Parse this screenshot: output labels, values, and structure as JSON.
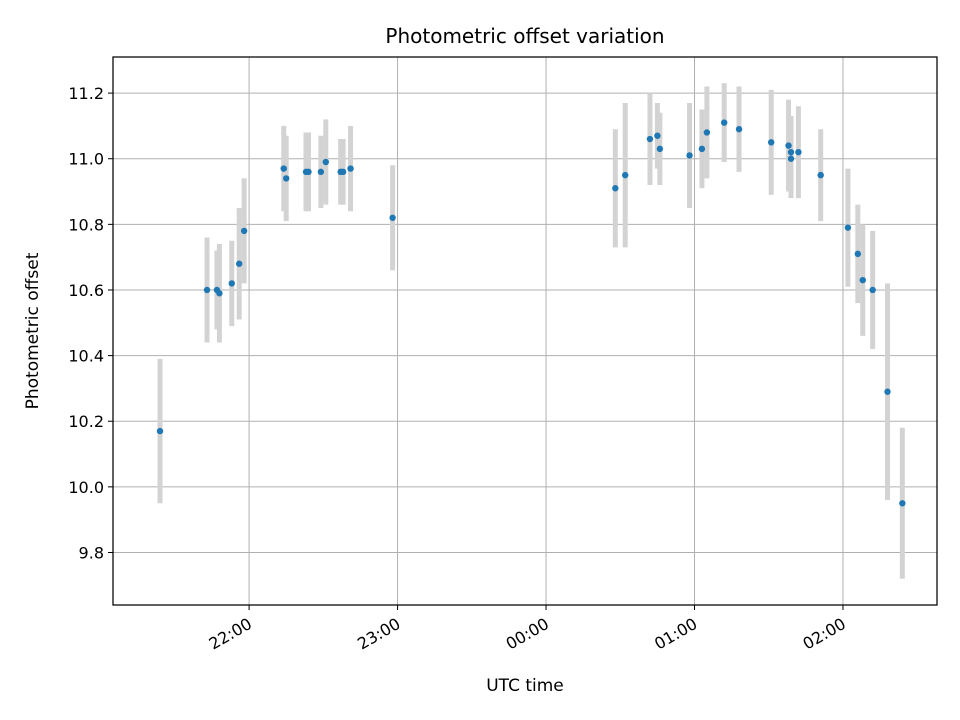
{
  "chart_data": {
    "type": "scatter",
    "title": "Photometric offset variation",
    "xlabel": "UTC time",
    "ylabel": "Photometric offset",
    "grid": true,
    "colors": {
      "points": "#1f77b4",
      "errorbars": "#d3d3d3",
      "grid": "#b0b0b0"
    },
    "xlim": [
      "21:05",
      "02:38"
    ],
    "ylim": [
      9.64,
      11.31
    ],
    "x_ticks": [
      "22:00",
      "23:00",
      "00:00",
      "01:00",
      "02:00"
    ],
    "y_ticks": [
      "9.8",
      "10.0",
      "10.2",
      "10.4",
      "10.6",
      "10.8",
      "11.0",
      "11.2"
    ],
    "series": [
      {
        "x": [
          "21:24",
          "21:43",
          "21:47",
          "21:48",
          "21:53",
          "21:56",
          "21:58",
          "22:14",
          "22:15",
          "22:23",
          "22:24",
          "22:29",
          "22:31",
          "22:37",
          "22:38",
          "22:41",
          "22:58",
          "00:28",
          "00:32",
          "00:42",
          "00:45",
          "00:46",
          "00:58",
          "01:03",
          "01:05",
          "01:12",
          "01:18",
          "01:31",
          "01:38",
          "01:39",
          "01:39",
          "01:42",
          "01:51",
          "02:02",
          "02:06",
          "02:08",
          "02:12",
          "02:18",
          "02:24"
        ],
        "y": [
          10.17,
          10.6,
          10.6,
          10.59,
          10.62,
          10.68,
          10.78,
          10.97,
          10.94,
          10.96,
          10.96,
          10.96,
          10.99,
          10.96,
          10.96,
          10.97,
          10.82,
          10.91,
          10.95,
          11.06,
          11.07,
          11.03,
          11.01,
          11.03,
          11.08,
          11.11,
          11.09,
          11.05,
          11.04,
          11.02,
          11.0,
          11.02,
          10.95,
          10.79,
          10.71,
          10.63,
          10.6,
          10.29,
          9.95
        ],
        "err": [
          0.22,
          0.16,
          0.12,
          0.15,
          0.13,
          0.17,
          0.16,
          0.13,
          0.13,
          0.12,
          0.12,
          0.11,
          0.13,
          0.1,
          0.1,
          0.13,
          0.16,
          0.18,
          0.22,
          0.14,
          0.1,
          0.11,
          0.16,
          0.12,
          0.14,
          0.12,
          0.13,
          0.16,
          0.14,
          0.11,
          0.12,
          0.14,
          0.14,
          0.18,
          0.15,
          0.17,
          0.18,
          0.33,
          0.23
        ]
      }
    ]
  }
}
